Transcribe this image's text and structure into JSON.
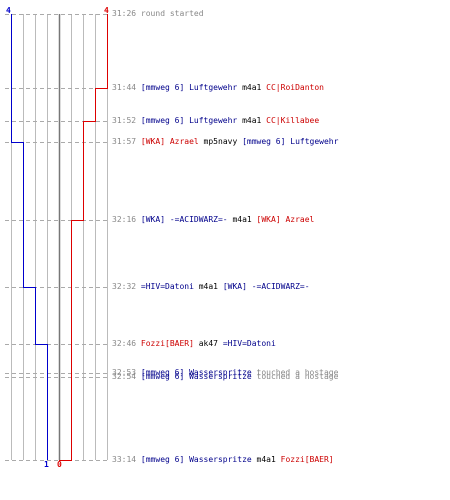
{
  "colors": {
    "team1": "#0000cc",
    "team2": "#dd0000",
    "grid": "#bbbbbb",
    "center": "#777777",
    "dash": "#aaaaaa",
    "timestamp": "#888888",
    "player_team1": "#00008b",
    "player_team2": "#cc0000"
  },
  "score": {
    "team1_start": "4",
    "team2_start": "4",
    "team1_end": "1",
    "team2_end": "0"
  },
  "timeline": {
    "start_time": "31:26",
    "end_time": "33:14"
  },
  "events": [
    {
      "time": "31:26",
      "msg": "round started"
    },
    {
      "time": "31:44",
      "attacker": "[mmweg 6] Luftgewehr",
      "attacker_team": "team-blue",
      "weapon": "m4a1",
      "victim": "CC|RoiDanton",
      "victim_team": "team-red"
    },
    {
      "time": "31:52",
      "attacker": "[mmweg 6] Luftgewehr",
      "attacker_team": "team-blue",
      "weapon": "m4a1",
      "victim": "CC|Killabee",
      "victim_team": "team-red"
    },
    {
      "time": "31:57",
      "attacker": "[WKA] Azrael",
      "attacker_team": "team-red",
      "weapon": "mp5navy",
      "victim": "[mmweg 6] Luftgewehr",
      "victim_team": "team-blue"
    },
    {
      "time": "32:16",
      "attacker": "[WKA] -=ACIDWARZ=-",
      "attacker_team": "team-blue",
      "weapon": "m4a1",
      "victim": "[WKA] Azrael",
      "victim_team": "team-red"
    },
    {
      "time": "32:32",
      "attacker": "=HIV=Datoni",
      "attacker_team": "team-blue",
      "weapon": "m4a1",
      "victim": "[WKA] -=ACIDWARZ=-",
      "victim_team": "team-blue"
    },
    {
      "time": "32:46",
      "attacker": "Fozzi[BAER]",
      "attacker_team": "team-red",
      "weapon": "ak47",
      "victim": "=HIV=Datoni",
      "victim_team": "team-blue"
    },
    {
      "time": "32:53",
      "attacker": "[mmweg 6] Wasserspritze",
      "attacker_team": "team-blue",
      "msg": "touched a hostage"
    },
    {
      "time": "32:54",
      "attacker": "[mmweg 6] Wasserspritze",
      "attacker_team": "team-blue",
      "msg": "touched a hostage"
    },
    {
      "time": "33:14",
      "attacker": "[mmweg 6] Wasserspritze",
      "attacker_team": "team-blue",
      "weapon": "m4a1",
      "victim": "Fozzi[BAER]",
      "victim_team": "team-red"
    }
  ]
}
